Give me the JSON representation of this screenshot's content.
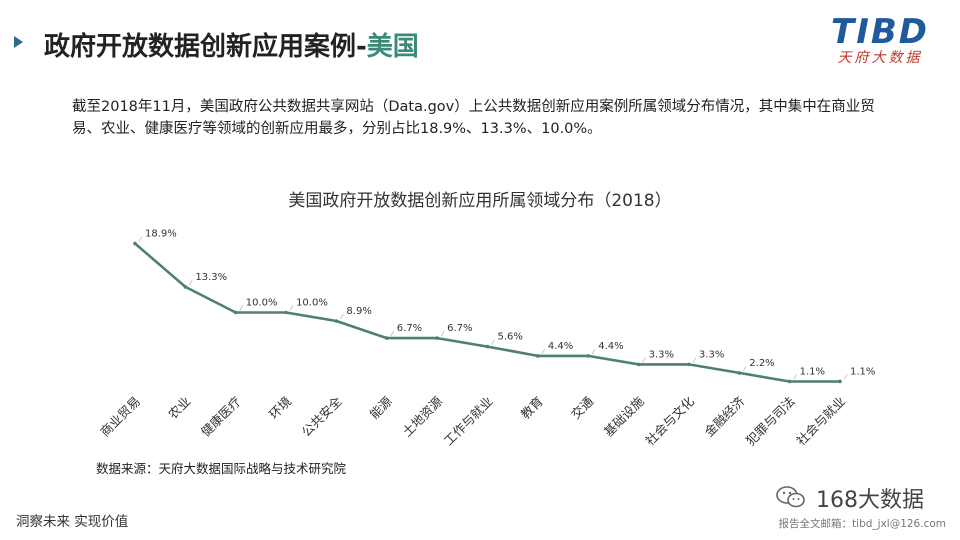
{
  "header": {
    "title_main": "政府开放数据创新应用案例-",
    "title_accent": "美国",
    "logo_text": "TIBD",
    "logo_subtext": "天府大数据"
  },
  "description": "截至2018年11月，美国政府公共数据共享网站（Data.gov）上公共数据创新应用案例所属领域分布情况，其中集中在商业贸易、农业、健康医疗等领域的创新应用最多，分别占比18.9%、13.3%、10.0%。",
  "chart_data": {
    "type": "line",
    "title": "美国政府开放数据创新应用所属领域分布（2018）",
    "xlabel": "",
    "ylabel": "",
    "categories": [
      "商业贸易",
      "农业",
      "健康医疗",
      "环境",
      "公共安全",
      "能源",
      "土地资源",
      "工作与就业",
      "教育",
      "交通",
      "基础设施",
      "社会与文化",
      "金融经济",
      "犯罪与司法",
      "社会与就业"
    ],
    "values": [
      18.9,
      13.3,
      10.0,
      10.0,
      8.9,
      6.7,
      6.7,
      5.6,
      4.4,
      4.4,
      3.3,
      3.3,
      2.2,
      1.1,
      1.1
    ],
    "data_labels": [
      "18.9%",
      "13.3%",
      "10.0%",
      "10.0%",
      "8.9%",
      "6.7%",
      "6.7%",
      "5.6%",
      "4.4%",
      "4.4%",
      "3.3%",
      "3.3%",
      "2.2%",
      "1.1%",
      "1.1%"
    ],
    "ylim": [
      0,
      20
    ],
    "grid": false,
    "line_color": "#4f7f74"
  },
  "source": "数据来源：天府大数据国际战略与技术研究院",
  "footer": {
    "left": "洞察未来 实现价值",
    "wechat_name": "168大数据",
    "right": "报告全文邮箱：tibd_jxl@126.com"
  }
}
